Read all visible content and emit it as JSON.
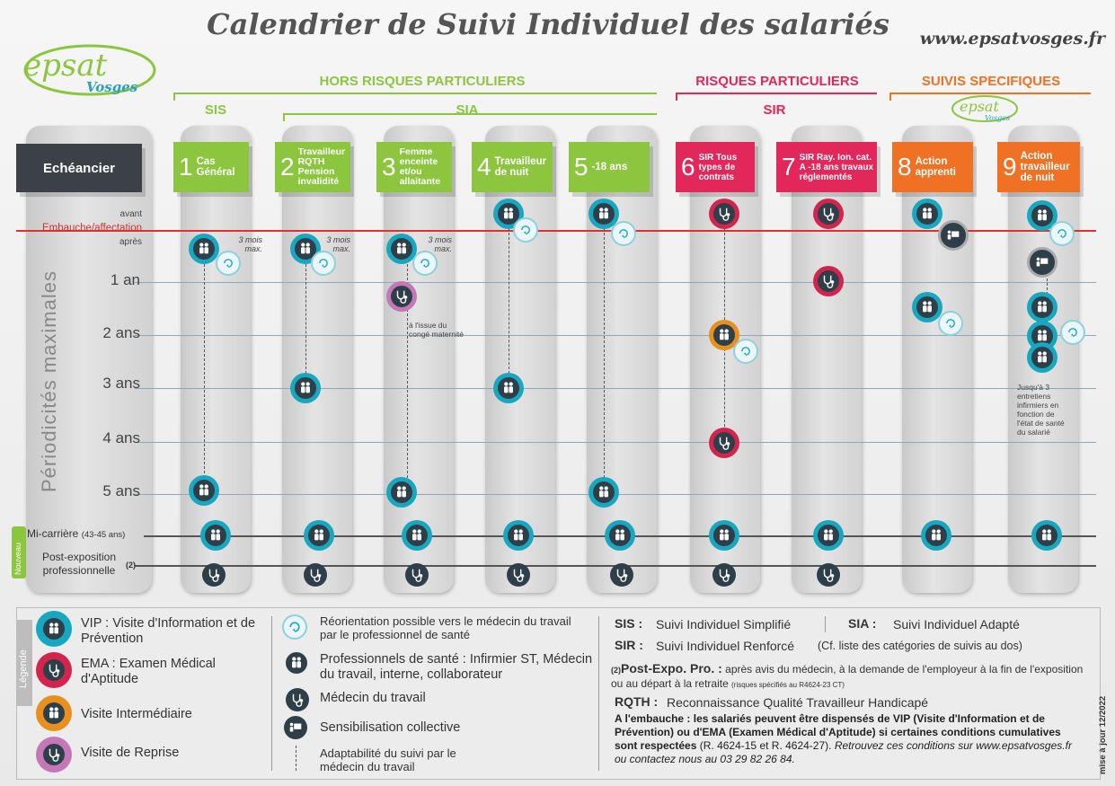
{
  "title": "Calendrier de Suivi Individuel des salariés",
  "website": "www.epsatvosges.fr",
  "logo": {
    "text": "epsat",
    "sub": "Vosges"
  },
  "groups": {
    "hors": "HORS RISQUES PARTICULIERS",
    "risques": "RISQUES PARTICULIERS",
    "suivis": "SUIVIS SPECIFIQUES",
    "sis": "SIS",
    "sia": "SIA",
    "sir": "SIR"
  },
  "echeancier": "Echéancier",
  "columns": [
    {
      "num": "1",
      "label": "Cas Général",
      "color": "#8cc63f"
    },
    {
      "num": "2",
      "label": "Travailleur RQTH Pension invalidité",
      "color": "#8cc63f"
    },
    {
      "num": "3",
      "label": "Femme enceinte et/ou allaitante",
      "color": "#8cc63f"
    },
    {
      "num": "4",
      "label": "Travailleur de nuit",
      "color": "#8cc63f"
    },
    {
      "num": "5",
      "label": "-18 ans",
      "color": "#8cc63f"
    },
    {
      "num": "6",
      "label": "SIR Tous types de contrats",
      "color": "#e2275b"
    },
    {
      "num": "7",
      "label": "SIR Ray. Ion. cat. A -18 ans travaux réglementés",
      "color": "#e2275b"
    },
    {
      "num": "8",
      "label": "Action apprenti",
      "color": "#f07024"
    },
    {
      "num": "9",
      "label": "Action travailleur de nuit",
      "color": "#f07024"
    }
  ],
  "rows": {
    "avant": "avant",
    "embauche": "Embauche/affectation",
    "apres": "après",
    "y1": "1 an",
    "y2": "2 ans",
    "y3": "3 ans",
    "y4": "4 ans",
    "y5": "5 ans",
    "mi_carriere": "Mi-carrière",
    "mi_carriere_age": "(43-45 ans)",
    "post_expo": "Post-exposition professionnelle",
    "post_expo_note": "(2)"
  },
  "axis_title": "Périodicités maximales",
  "nouveau": "Nouveau",
  "notes": {
    "trois_mois": "3 mois max.",
    "conge": "à l'issue du congé maternité",
    "jusqua": "Jusqu'à 3 entretiens infirmiers en fonction de l'état de santé du salarié"
  },
  "legend": {
    "title": "Légende",
    "vip": "VIP : Visite d'Information et de Prévention",
    "ema": "EMA : Examen Médical d'Aptitude",
    "vi": "Visite Intermédiaire",
    "vr": "Visite de Reprise",
    "reo": "Réorientation possible vers le médecin du travail par le professionnel de santé",
    "pro": "Professionnels de santé : Infirmier ST, Médecin du travail, interne, collaborateur",
    "med": "Médecin du travail",
    "sens": "Sensibilisation collective",
    "adapt": "Adaptabilité du suivi par le médecin du travail",
    "sis_k": "SIS :",
    "sis_v": "Suivi Individuel Simplifié",
    "sia_k": "SIA :",
    "sia_v": "Suivi Individuel Adapté",
    "sir_k": "SIR :",
    "sir_v": "Suivi Individuel Renforcé",
    "sir_note": "(Cf. liste des catégories de suivis au dos)",
    "post_k": "Post-Expo. Pro. :",
    "post_num": "(2)",
    "post_v": "après avis du médecin, à la demande de l'employeur à la fin de l'exposition ou au départ à la retraite",
    "post_small": "(risques spécifiés au R4624-23 CT)",
    "rqth_k": "RQTH :",
    "rqth_v": "Reconnaissance Qualité Travailleur Handicapé",
    "embauche_bold": "A l'embauche : les salariés peuvent être dispensés de VIP (Visite d'Information et de Prévention) ou d'EMA (Examen Médical d'Aptitude) si certaines conditions cumulatives sont respectées",
    "embauche_ref": "(R. 4624-15 et R. 4624-27).",
    "embauche_italic": "Retrouvez ces conditions sur www.epsatvosges.fr ou contactez nous au 03 29 82 26 84.",
    "maj": "mise à jour 12/2022"
  },
  "colors": {
    "green": "#8cc63f",
    "red": "#e2275b",
    "orange": "#f07024",
    "vip": "#17a8bf",
    "ema": "#d3244e",
    "vi": "#e8901f",
    "vr": "#c478b8"
  }
}
